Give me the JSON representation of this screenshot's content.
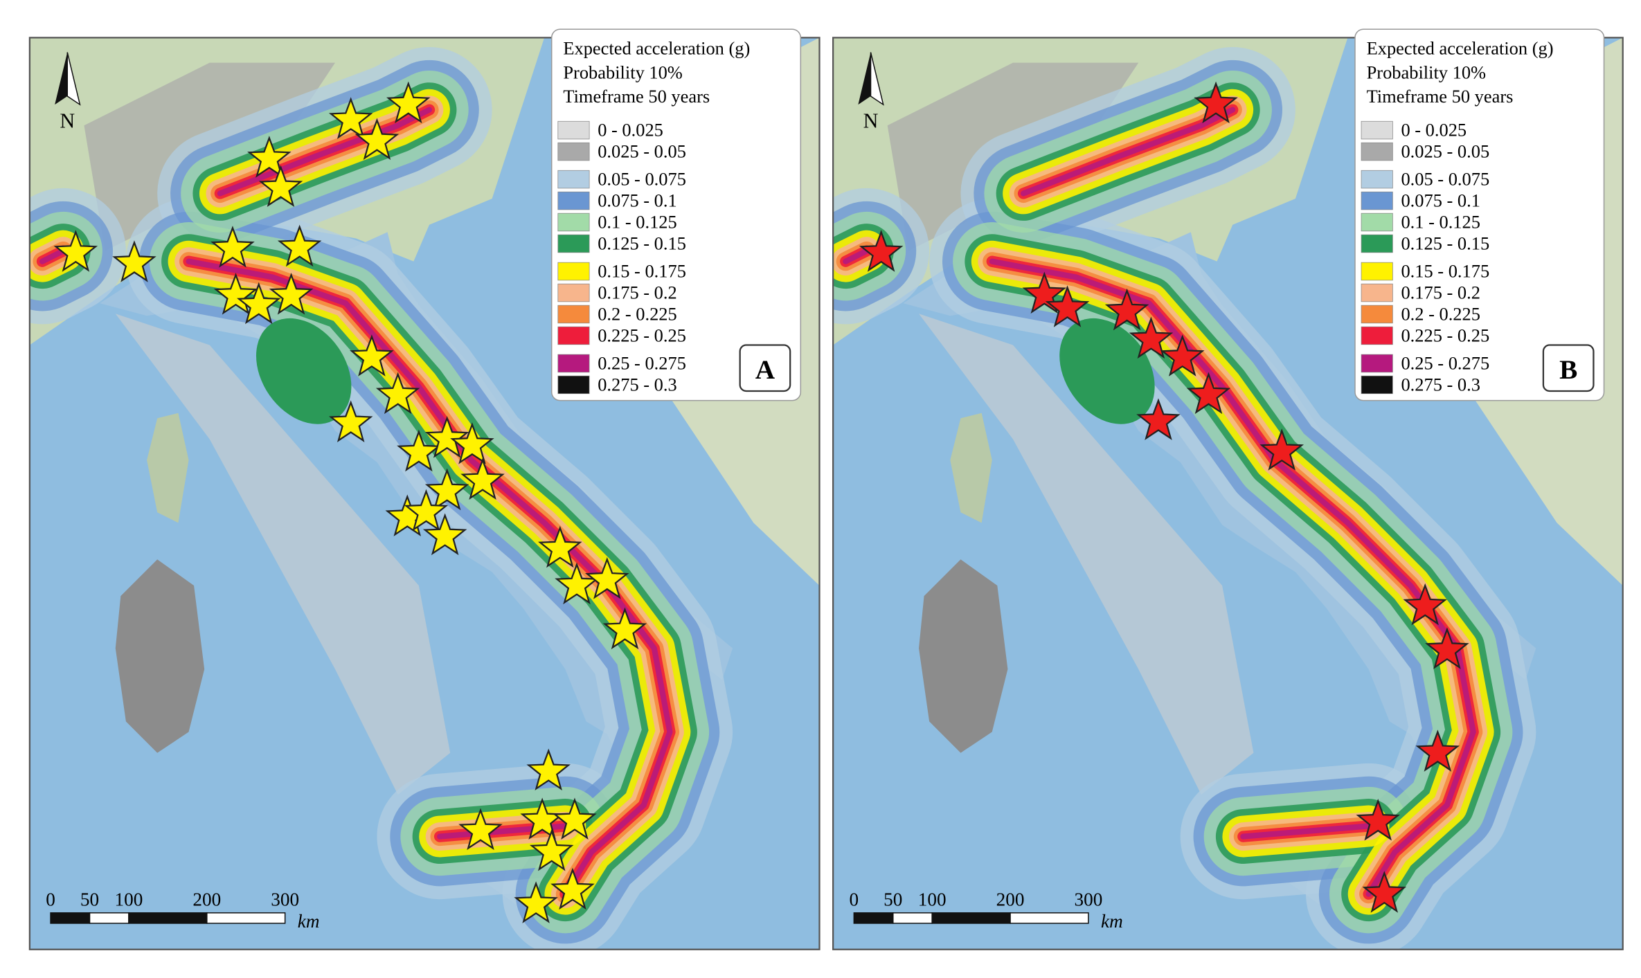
{
  "panels": [
    {
      "label": "A"
    },
    {
      "label": "B"
    }
  ],
  "legend": {
    "title": [
      "Expected acceleration (g)",
      "Probability 10%",
      "Timeframe 50 years"
    ],
    "items": [
      {
        "label": "0 - 0.025",
        "color": "#dcdcdc"
      },
      {
        "label": "0.025 - 0.05",
        "color": "#a9a9a9"
      },
      {
        "label": "0.05 - 0.075",
        "color": "#b2cde2"
      },
      {
        "label": "0.075 - 0.1",
        "color": "#6a96d2"
      },
      {
        "label": "0.1 - 0.125",
        "color": "#a2dba8"
      },
      {
        "label": "0.125 - 0.15",
        "color": "#2b9a58"
      },
      {
        "label": "0.15 - 0.175",
        "color": "#fff200"
      },
      {
        "label": "0.175 - 0.2",
        "color": "#f7b58c"
      },
      {
        "label": "0.2 - 0.225",
        "color": "#f58a3c"
      },
      {
        "label": "0.225 - 0.25",
        "color": "#ee1d3b"
      },
      {
        "label": "0.25 - 0.275",
        "color": "#b5197e"
      },
      {
        "label": "0.275 - 0.3",
        "color": "#111111"
      }
    ]
  },
  "scale_bar": {
    "ticks": [
      0,
      50,
      100,
      200,
      300
    ],
    "unit": "km"
  },
  "north": "N"
}
